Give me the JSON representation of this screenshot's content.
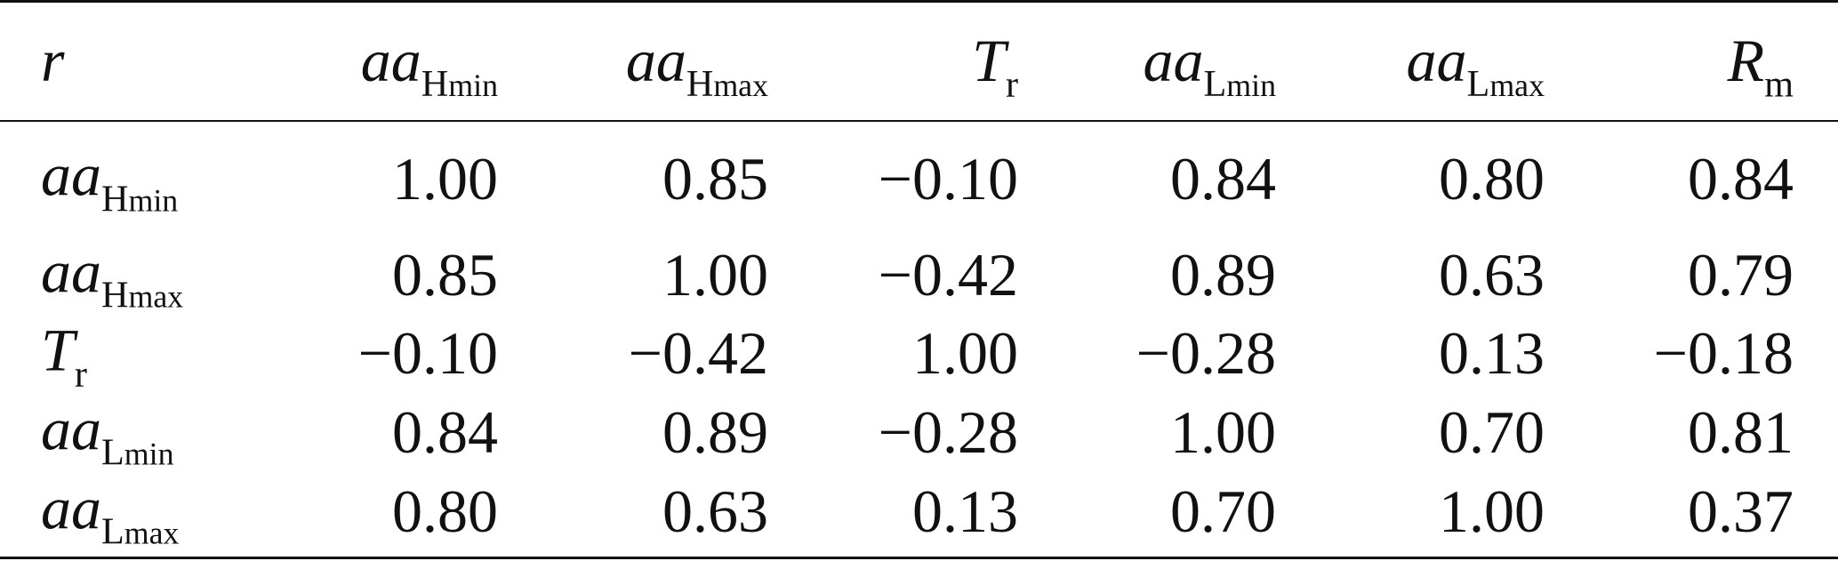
{
  "table": {
    "corner_label": "r",
    "columns": [
      {
        "base": "aa",
        "sub": "H",
        "subsub": "min"
      },
      {
        "base": "aa",
        "sub": "H",
        "subsub": "max"
      },
      {
        "base": "T",
        "sub": "r",
        "subsub": ""
      },
      {
        "base": "aa",
        "sub": "L",
        "subsub": "min"
      },
      {
        "base": "aa",
        "sub": "L",
        "subsub": "max"
      },
      {
        "base": "R",
        "sub": "m",
        "subsub": ""
      }
    ],
    "rows": [
      {
        "label": {
          "base": "aa",
          "sub": "H",
          "subsub": "min"
        },
        "values": [
          "1.00",
          "0.85",
          "−0.10",
          "0.84",
          "0.80",
          "0.84"
        ]
      },
      {
        "label": {
          "base": "aa",
          "sub": "H",
          "subsub": "max"
        },
        "values": [
          "0.85",
          "1.00",
          "−0.42",
          "0.89",
          "0.63",
          "0.79"
        ]
      },
      {
        "label": {
          "base": "T",
          "sub": "r",
          "subsub": ""
        },
        "values": [
          "−0.10",
          "−0.42",
          "1.00",
          "−0.28",
          "0.13",
          "−0.18"
        ]
      },
      {
        "label": {
          "base": "aa",
          "sub": "L",
          "subsub": "min"
        },
        "values": [
          "0.84",
          "0.89",
          "−0.28",
          "1.00",
          "0.70",
          "0.81"
        ]
      },
      {
        "label": {
          "base": "aa",
          "sub": "L",
          "subsub": "max"
        },
        "values": [
          "0.80",
          "0.63",
          "0.13",
          "0.70",
          "1.00",
          "0.37"
        ]
      }
    ]
  }
}
